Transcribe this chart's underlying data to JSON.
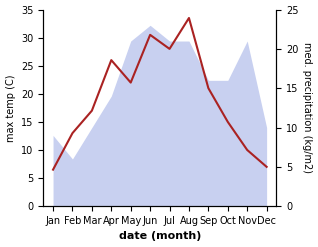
{
  "months": [
    "Jan",
    "Feb",
    "Mar",
    "Apr",
    "May",
    "Jun",
    "Jul",
    "Aug",
    "Sep",
    "Oct",
    "Nov",
    "Dec"
  ],
  "temperature": [
    6.5,
    13.0,
    17.0,
    26.0,
    22.0,
    30.5,
    28.0,
    33.5,
    21.0,
    15.0,
    10.0,
    7.0
  ],
  "precipitation": [
    9,
    6,
    10,
    14,
    21,
    23,
    21,
    21,
    16,
    16,
    21,
    10
  ],
  "temp_color": "#aa2222",
  "precip_fill_color": "#c8d0f0",
  "precip_line_color": "#c8d0f0",
  "temp_ylim": [
    0,
    35
  ],
  "precip_ylim": [
    0,
    25
  ],
  "temp_yticks": [
    0,
    5,
    10,
    15,
    20,
    25,
    30,
    35
  ],
  "precip_yticks": [
    0,
    5,
    10,
    15,
    20,
    25
  ],
  "xlabel": "date (month)",
  "ylabel_left": "max temp (C)",
  "ylabel_right": "med. precipitation (kg/m2)",
  "figsize": [
    3.18,
    2.47
  ],
  "dpi": 100
}
